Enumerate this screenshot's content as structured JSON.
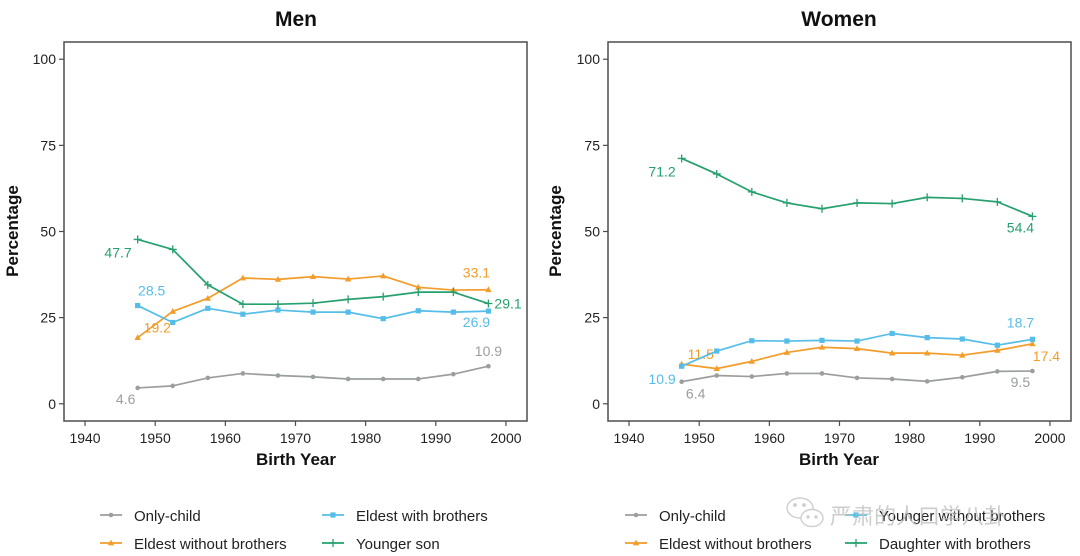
{
  "colors": {
    "only_child": "#9a9e9c",
    "eldest_without": "#f39c2a",
    "eldest_with": "#55bde9",
    "younger": "#26a06e",
    "axis": "#4d4d4d"
  },
  "watermark": {
    "text": "严肃的人口学八卦",
    "icon": "wechat-icon"
  },
  "chart_data": [
    {
      "type": "line",
      "title": "Men",
      "xlabel": "Birth Year",
      "ylabel": "Percentage",
      "xlim": [
        1937,
        2003
      ],
      "ylim": [
        -5,
        105
      ],
      "xticks": [
        1940,
        1950,
        1960,
        1970,
        1980,
        1990,
        2000
      ],
      "yticks": [
        0,
        25,
        50,
        75,
        100
      ],
      "grid": false,
      "legend_position": "bottom",
      "x": [
        1947.5,
        1952.5,
        1957.5,
        1962.5,
        1967.5,
        1972.5,
        1977.5,
        1982.5,
        1987.5,
        1992.5,
        1997.5
      ],
      "series": [
        {
          "key": "only_child",
          "name": "Only-child",
          "marker": "circle",
          "values": [
            4.6,
            5.2,
            7.5,
            8.8,
            8.2,
            7.8,
            7.2,
            7.2,
            7.2,
            8.6,
            10.9
          ],
          "labels": [
            {
              "index": 0,
              "text": "4.6",
              "pos": "below-left"
            },
            {
              "index": 10,
              "text": "10.9",
              "pos": "above"
            }
          ]
        },
        {
          "key": "eldest_without",
          "name": "Eldest without brothers",
          "marker": "triangle",
          "values": [
            19.2,
            26.8,
            30.6,
            36.5,
            36.1,
            36.9,
            36.2,
            37.1,
            33.8,
            33.0,
            33.1
          ],
          "labels": [
            {
              "index": 0,
              "text": "19.2",
              "pos": "right-up"
            },
            {
              "index": 10,
              "text": "33.1",
              "pos": "above-left"
            }
          ]
        },
        {
          "key": "eldest_with",
          "name": "Eldest with brothers",
          "marker": "square",
          "values": [
            28.5,
            23.6,
            27.7,
            26.0,
            27.2,
            26.6,
            26.6,
            24.7,
            27.0,
            26.6,
            26.9
          ],
          "labels": [
            {
              "index": 0,
              "text": "28.5",
              "pos": "above-right"
            },
            {
              "index": 10,
              "text": "26.9",
              "pos": "below-left"
            }
          ]
        },
        {
          "key": "younger",
          "name": "Younger son",
          "marker": "plus",
          "values": [
            47.7,
            44.8,
            34.5,
            28.9,
            28.9,
            29.2,
            30.3,
            31.1,
            32.4,
            32.4,
            29.1
          ],
          "labels": [
            {
              "index": 0,
              "text": "47.7",
              "pos": "left-down"
            },
            {
              "index": 10,
              "text": "29.1",
              "pos": "right"
            }
          ]
        }
      ],
      "legend": [
        {
          "key": "only_child",
          "name": "Only-child"
        },
        {
          "key": "eldest_with",
          "name": "Eldest with brothers"
        },
        {
          "key": "eldest_without",
          "name": "Eldest without brothers"
        },
        {
          "key": "younger",
          "name": "Younger son"
        }
      ]
    },
    {
      "type": "line",
      "title": "Women",
      "xlabel": "Birth Year",
      "ylabel": "Percentage",
      "xlim": [
        1937,
        2003
      ],
      "ylim": [
        -5,
        105
      ],
      "xticks": [
        1940,
        1950,
        1960,
        1970,
        1980,
        1990,
        2000
      ],
      "yticks": [
        0,
        25,
        50,
        75,
        100
      ],
      "grid": false,
      "legend_position": "bottom",
      "x": [
        1947.5,
        1952.5,
        1957.5,
        1962.5,
        1967.5,
        1972.5,
        1977.5,
        1982.5,
        1987.5,
        1992.5,
        1997.5
      ],
      "series": [
        {
          "key": "only_child",
          "name": "Only-child",
          "marker": "circle",
          "values": [
            6.4,
            8.2,
            7.9,
            8.8,
            8.8,
            7.5,
            7.2,
            6.5,
            7.7,
            9.4,
            9.5
          ],
          "labels": [
            {
              "index": 0,
              "text": "6.4",
              "pos": "below-right"
            },
            {
              "index": 10,
              "text": "9.5",
              "pos": "below-left"
            }
          ]
        },
        {
          "key": "eldest_without",
          "name": "Eldest without brothers",
          "marker": "triangle",
          "values": [
            11.5,
            10.2,
            12.3,
            14.9,
            16.4,
            16.0,
            14.7,
            14.7,
            14.1,
            15.5,
            17.4
          ],
          "labels": [
            {
              "index": 0,
              "text": "11.5",
              "pos": "right-up"
            },
            {
              "index": 10,
              "text": "17.4",
              "pos": "below-right"
            }
          ]
        },
        {
          "key": "eldest_with",
          "name": "Younger without brothers",
          "marker": "square",
          "values": [
            10.9,
            15.3,
            18.3,
            18.2,
            18.4,
            18.2,
            20.4,
            19.2,
            18.8,
            17.0,
            18.7
          ],
          "labels": [
            {
              "index": 0,
              "text": "10.9",
              "pos": "left-down"
            },
            {
              "index": 10,
              "text": "18.7",
              "pos": "above-left"
            }
          ]
        },
        {
          "key": "younger",
          "name": "Daughter with brothers",
          "marker": "plus",
          "values": [
            71.2,
            66.7,
            61.5,
            58.3,
            56.6,
            58.3,
            58.1,
            59.9,
            59.6,
            58.6,
            54.4
          ],
          "labels": [
            {
              "index": 0,
              "text": "71.2",
              "pos": "left-down"
            },
            {
              "index": 10,
              "text": "54.4",
              "pos": "below-left"
            }
          ]
        }
      ],
      "legend": [
        {
          "key": "only_child",
          "name": "Only-child"
        },
        {
          "key": "eldest_with",
          "name": "Younger without brothers"
        },
        {
          "key": "eldest_without",
          "name": "Eldest without brothers"
        },
        {
          "key": "younger",
          "name": "Daughter with brothers"
        }
      ]
    }
  ]
}
